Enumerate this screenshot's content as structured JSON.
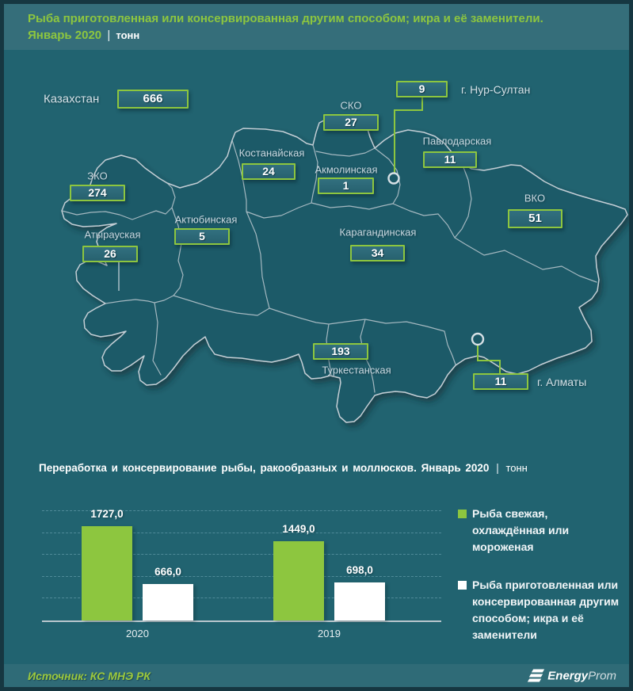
{
  "header": {
    "title_line1": "Рыба приготовленная или консервированная другим способом; икра и её заменители.",
    "period": "Январь 2020",
    "separator": "|",
    "unit": "тонн"
  },
  "map": {
    "country": {
      "label": "Казахстан",
      "value": "666"
    },
    "regions": [
      {
        "name": "ЗКО",
        "value": "274"
      },
      {
        "name": "Атырауская",
        "value": "26"
      },
      {
        "name": "Актюбинская",
        "value": "5"
      },
      {
        "name": "Костанайская",
        "value": "24"
      },
      {
        "name": "СКО",
        "value": "27"
      },
      {
        "name": "Акмолинская",
        "value": "1"
      },
      {
        "name": "г. Нур-Султан",
        "value": "9"
      },
      {
        "name": "Павлодарская",
        "value": "11"
      },
      {
        "name": "ВКО",
        "value": "51"
      },
      {
        "name": "Карагандинская",
        "value": "34"
      },
      {
        "name": "Туркестанская",
        "value": "193"
      },
      {
        "name": "г. Алматы",
        "value": "11"
      }
    ]
  },
  "chart": {
    "title_main": "Переработка и консервирование  рыбы, ракообразных и моллюсков.  Январь  2020",
    "separator": "|",
    "unit": "тонн"
  },
  "chart_data": {
    "type": "bar",
    "title": "Переработка и консервирование рыбы, ракообразных и моллюсков. Январь 2020 | тонн",
    "categories": [
      "2020",
      "2019"
    ],
    "series": [
      {
        "name": "Рыба свежая, охлаждённая или мороженая",
        "color": "#8dc63f",
        "values": [
          1727.0,
          1449.0
        ],
        "labels": [
          "1727,0",
          "1449,0"
        ]
      },
      {
        "name": "Рыба приготовленная или консервированная другим способом; икра и её заменители",
        "color": "#ffffff",
        "values": [
          666.0,
          698.0
        ],
        "labels": [
          "666,0",
          "698,0"
        ]
      }
    ],
    "ylim": [
      0,
      2000
    ],
    "gridline_values": [
      400,
      800,
      1200,
      1600,
      2000
    ],
    "grid_style": "dashed",
    "legend_position": "right",
    "unit": "тонн"
  },
  "footer": {
    "source": "Источник: КС МНЭ РК",
    "logo_bold": "Energy",
    "logo_light": "Prom"
  },
  "colors": {
    "accent_green": "#8dc63f",
    "bar_white": "#ffffff",
    "background": "#216370",
    "header_bg": "#356e7a",
    "footer_bg": "#2f6b77"
  }
}
